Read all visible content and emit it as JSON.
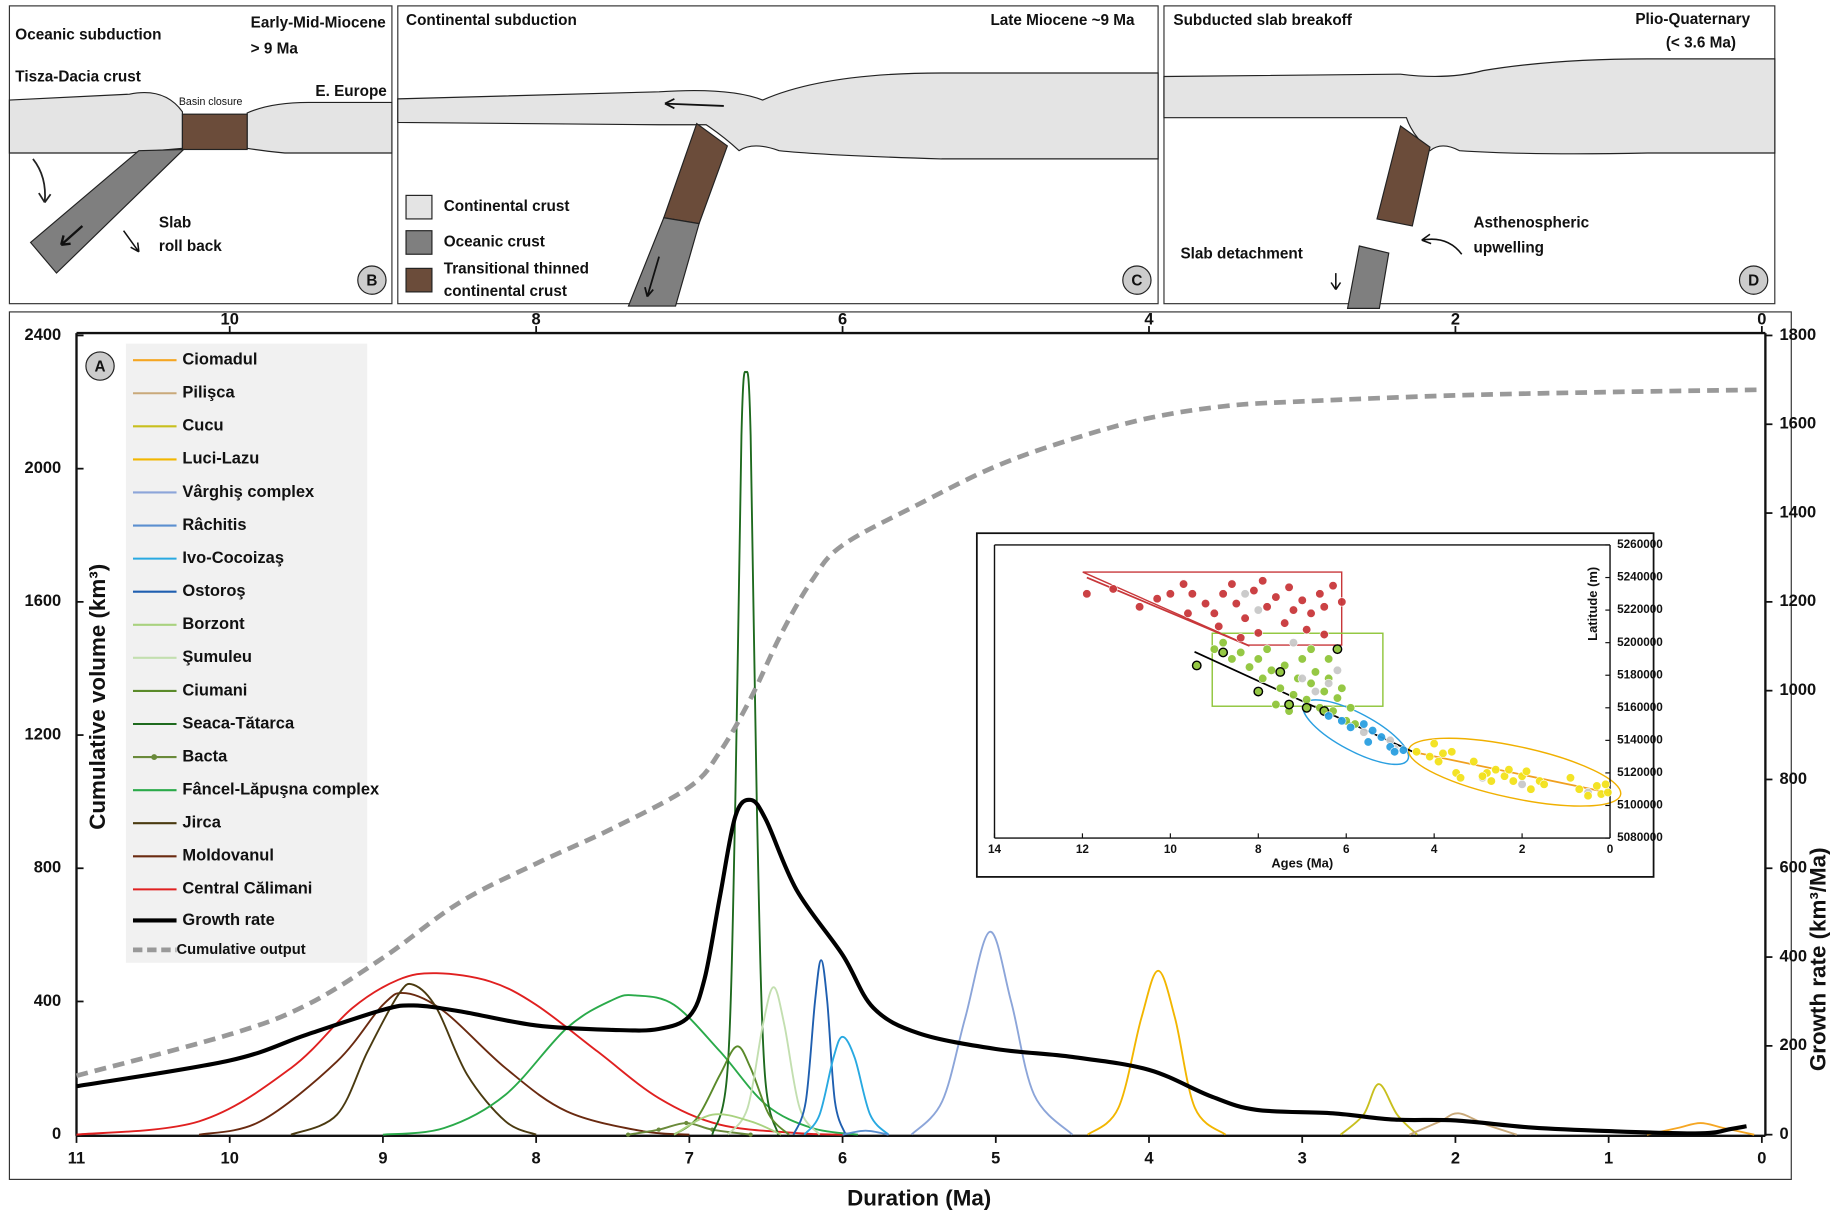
{
  "panels": [
    {
      "title": "Oceanic subduction",
      "period": [
        "Early-Mid-Miocene",
        "> 9 Ma"
      ],
      "labels": [
        "Tisza-Dacia crust",
        "Basin closure",
        "E. Europe",
        "Slab",
        "roll back"
      ],
      "letter": "B"
    },
    {
      "title": "Continental subduction",
      "period": [
        "Late Miocene ~9 Ma"
      ],
      "legend": [
        "Continental crust",
        "Oceanic crust",
        "Transitional thinned",
        "continental crust"
      ],
      "letter": "C"
    },
    {
      "title": "Subducted slab breakoff",
      "period": [
        "Plio-Quaternary",
        "(< 3.6 Ma)"
      ],
      "labels": [
        "Slab detachment",
        "Asthenospheric",
        "upwelling"
      ],
      "letter": "D"
    }
  ],
  "chart_data": [
    {
      "type": "line",
      "panel_label": "A",
      "xlabel": "Duration (Ma)",
      "ylabel": "Cumulative volume (km³)",
      "y2label": "Growth rate (km³/Ma)",
      "xlim": [
        11,
        0
      ],
      "xticks": [
        11,
        10,
        9,
        8,
        7,
        6,
        5,
        4,
        3,
        2,
        1,
        0
      ],
      "x2ticks": [
        10,
        8,
        6,
        4,
        2,
        0
      ],
      "ylim": [
        0,
        2400
      ],
      "yticks": [
        0,
        400,
        800,
        1200,
        1600,
        2000,
        2400
      ],
      "y2lim": [
        0,
        1800
      ],
      "y2ticks": [
        0,
        200,
        400,
        600,
        800,
        1000,
        1200,
        1400,
        1600,
        1800
      ],
      "series": [
        {
          "name": "Ciomadul",
          "color": "#f5a623",
          "x": [
            0.75,
            0.55,
            0.4,
            0.25,
            0.05
          ],
          "values": [
            0,
            20,
            35,
            20,
            0
          ]
        },
        {
          "name": "Pilişca",
          "color": "#c9a97a",
          "x": [
            2.3,
            2.1,
            1.98,
            1.8,
            1.6
          ],
          "values": [
            0,
            40,
            64,
            30,
            0
          ]
        },
        {
          "name": "Cucu",
          "color": "#c8bf1e",
          "x": [
            2.75,
            2.6,
            2.5,
            2.38,
            2.25
          ],
          "values": [
            0,
            60,
            152,
            60,
            0
          ]
        },
        {
          "name": "Luci-Lazu",
          "color": "#f2b600",
          "x": [
            4.4,
            4.2,
            4.05,
            3.94,
            3.83,
            3.7,
            3.5
          ],
          "values": [
            0,
            80,
            350,
            492,
            350,
            80,
            0
          ]
        },
        {
          "name": "Vârghiş complex",
          "color": "#8ca5d9",
          "x": [
            5.55,
            5.35,
            5.2,
            5.04,
            4.9,
            4.75,
            4.5
          ],
          "values": [
            0,
            100,
            350,
            609,
            400,
            120,
            0
          ]
        },
        {
          "name": "Râchitis",
          "color": "#5b8fd0",
          "x": [
            6.0,
            5.85,
            5.7
          ],
          "values": [
            0,
            12,
            0
          ]
        },
        {
          "name": "Ivo-Cocoizaş",
          "color": "#28a9e1",
          "x": [
            6.25,
            6.15,
            6.06,
            6.0,
            5.92,
            5.82,
            5.7
          ],
          "values": [
            0,
            60,
            230,
            294,
            230,
            60,
            0
          ]
        },
        {
          "name": "Ostoroş",
          "color": "#1f5fb0",
          "x": [
            6.32,
            6.24,
            6.18,
            6.14,
            6.1,
            6.05,
            5.98
          ],
          "values": [
            0,
            100,
            400,
            524,
            400,
            100,
            0
          ]
        },
        {
          "name": "Borzont",
          "color": "#a9d27f",
          "x": [
            7.1,
            6.85,
            6.6,
            6.4
          ],
          "values": [
            0,
            60,
            40,
            0
          ]
        },
        {
          "name": "Şumuleu",
          "color": "#c3dfb0",
          "x": [
            6.75,
            6.62,
            6.52,
            6.45,
            6.38,
            6.28,
            6.15
          ],
          "values": [
            0,
            80,
            330,
            443,
            330,
            80,
            0
          ]
        },
        {
          "name": "Ciumani",
          "color": "#5a8a2a",
          "x": [
            7.1,
            6.95,
            6.8,
            6.69,
            6.6,
            6.48,
            6.35
          ],
          "values": [
            0,
            50,
            180,
            265,
            200,
            60,
            0
          ]
        },
        {
          "name": "Seaca-Tătarca",
          "color": "#1e6a1e",
          "x": [
            6.85,
            6.75,
            6.7,
            6.66,
            6.63,
            6.6,
            6.56,
            6.51,
            6.42
          ],
          "values": [
            0,
            200,
            1000,
            2100,
            2290,
            2100,
            1000,
            200,
            0
          ]
        },
        {
          "name": "Bacta",
          "color": "#6a8a3a",
          "marker": "circle",
          "x": [
            7.4,
            7.2,
            7.02,
            6.85,
            6.6
          ],
          "values": [
            0,
            15,
            35,
            15,
            0
          ]
        },
        {
          "name": "Fâncel-Lăpuşna complex",
          "color": "#2aaa4a",
          "x": [
            9.0,
            8.6,
            8.2,
            7.8,
            7.5,
            7.35,
            7.1,
            6.8,
            6.5,
            6.2,
            5.9
          ],
          "values": [
            0,
            20,
            120,
            320,
            405,
            418,
            390,
            250,
            90,
            20,
            0
          ]
        },
        {
          "name": "Jirca",
          "color": "#4a3a10",
          "x": [
            9.6,
            9.3,
            9.1,
            8.9,
            8.8,
            8.65,
            8.45,
            8.2,
            8.0
          ],
          "values": [
            0,
            60,
            250,
            420,
            450,
            380,
            180,
            40,
            0
          ]
        },
        {
          "name": "Moldovanul",
          "color": "#6a2a10",
          "x": [
            10.2,
            9.8,
            9.3,
            9.0,
            8.85,
            8.6,
            8.2,
            7.8,
            7.3,
            7.0
          ],
          "values": [
            0,
            40,
            220,
            390,
            425,
            370,
            200,
            70,
            10,
            0
          ]
        },
        {
          "name": "Central Călimani",
          "color": "#e02020",
          "x": [
            11,
            10.2,
            9.6,
            9.2,
            8.9,
            8.65,
            8.3,
            8.0,
            7.6,
            7.2,
            6.8,
            6.3,
            6.0
          ],
          "values": [
            0,
            40,
            200,
            380,
            465,
            485,
            460,
            390,
            250,
            110,
            30,
            5,
            0
          ]
        },
        {
          "name": "Growth rate",
          "color": "#000000",
          "width": 3.5,
          "axis": "y2",
          "x": [
            11,
            10,
            9.5,
            9,
            8.8,
            8.5,
            8,
            7.5,
            7.2,
            7,
            6.9,
            6.8,
            6.7,
            6.6,
            6.5,
            6.3,
            6,
            5.8,
            5.5,
            5,
            4.5,
            4,
            3.6,
            3.3,
            2.8,
            2.4,
            2,
            1.5,
            1,
            0.4,
            0.2,
            0.1
          ],
          "values": [
            109,
            167,
            225,
            281,
            291,
            278,
            246,
            236,
            238,
            267,
            352,
            537,
            717,
            754,
            709,
            551,
            405,
            286,
            228,
            193,
            175,
            146,
            87,
            56,
            48,
            34,
            32,
            16,
            8,
            3,
            13,
            19
          ]
        },
        {
          "name": "Cumulative output",
          "color": "#999999",
          "width": 4,
          "dashed": true,
          "x": [
            11,
            10,
            9.5,
            9,
            8.5,
            8,
            7.5,
            7,
            6.8,
            6.6,
            6.4,
            6.2,
            6,
            5.5,
            5,
            4.5,
            4,
            3.5,
            3,
            2,
            1,
            0
          ],
          "values": [
            177,
            301,
            389,
            531,
            697,
            814,
            920,
            1044,
            1150,
            1310,
            1504,
            1664,
            1770,
            1894,
            2007,
            2089,
            2152,
            2188,
            2202,
            2220,
            2230,
            2237
          ]
        }
      ]
    },
    {
      "type": "scatter",
      "xlabel": "Ages (Ma)",
      "ylabel": "Latitude (m)",
      "xlim": [
        14,
        0
      ],
      "xticks": [
        14,
        12,
        10,
        8,
        6,
        4,
        2,
        0
      ],
      "ylim": [
        5080000,
        5260000
      ],
      "yticks": [
        5080000,
        5100000,
        5120000,
        5140000,
        5160000,
        5180000,
        5200000,
        5220000,
        5240000,
        5260000
      ],
      "series": [
        {
          "color": "#c8373a",
          "x": [
            11.9,
            11.3,
            10.7,
            10.3,
            10.0,
            9.7,
            9.5,
            9.2,
            9.0,
            8.9,
            8.8,
            8.6,
            8.5,
            8.3,
            8.1,
            8.0,
            7.9,
            7.8,
            7.6,
            7.4,
            7.3,
            7.2,
            7.0,
            6.9,
            6.8,
            6.6,
            6.5,
            6.3,
            6.1,
            6.5,
            9.6,
            8.4
          ],
          "values": [
            5230000,
            5233000,
            5222000,
            5227000,
            5230000,
            5236000,
            5230000,
            5224000,
            5218000,
            5210000,
            5230000,
            5236000,
            5224000,
            5215000,
            5232000,
            5206000,
            5238000,
            5222000,
            5228000,
            5212000,
            5234000,
            5220000,
            5226000,
            5208000,
            5218000,
            5230000,
            5222000,
            5235000,
            5225000,
            5205000,
            5218000,
            5203000
          ]
        },
        {
          "color": "#8fc53a",
          "x": [
            9.0,
            8.8,
            8.6,
            8.4,
            8.2,
            8.0,
            7.9,
            7.7,
            7.5,
            7.4,
            7.2,
            7.1,
            7.0,
            6.9,
            6.8,
            6.7,
            6.6,
            6.5,
            6.4,
            6.3,
            6.2,
            6.1,
            6.0,
            5.9,
            5.8,
            7.6,
            7.3,
            6.8,
            7.8,
            6.4
          ],
          "values": [
            5196000,
            5200000,
            5190000,
            5194000,
            5185000,
            5190000,
            5178000,
            5183000,
            5172000,
            5186000,
            5168000,
            5178000,
            5190000,
            5165000,
            5175000,
            5182000,
            5160000,
            5170000,
            5178000,
            5158000,
            5166000,
            5172000,
            5152000,
            5160000,
            5150000,
            5162000,
            5158000,
            5196000,
            5196000,
            5190000
          ]
        },
        {
          "color": "#8fc53a",
          "edgecolor": "#000000",
          "x": [
            9.4,
            8.8,
            8.0,
            7.5,
            7.3,
            6.9,
            6.5,
            6.2
          ],
          "values": [
            5186000,
            5194000,
            5170000,
            5182000,
            5162000,
            5160000,
            5158000,
            5196000
          ]
        },
        {
          "color": "#c8c8c8",
          "x": [
            8.3,
            8.0,
            7.2,
            7.0,
            6.7,
            6.4,
            6.2,
            5.6,
            5.0,
            4.9,
            2.0,
            2.9,
            0.5
          ],
          "values": [
            5230000,
            5220000,
            5200000,
            5178000,
            5170000,
            5175000,
            5183000,
            5145000,
            5140000,
            5135000,
            5113000,
            5117000,
            5108000
          ]
        },
        {
          "color": "#2a9fe0",
          "x": [
            6.4,
            6.1,
            5.9,
            5.6,
            5.4,
            5.2,
            5.0,
            4.9,
            4.7,
            5.5
          ],
          "values": [
            5155000,
            5152000,
            5148000,
            5150000,
            5146000,
            5142000,
            5136000,
            5133000,
            5134000,
            5139000
          ]
        },
        {
          "color": "#f2e21a",
          "x": [
            4.4,
            4.1,
            3.9,
            3.8,
            3.5,
            3.4,
            3.1,
            2.8,
            2.7,
            2.6,
            2.4,
            2.3,
            2.2,
            2.0,
            1.9,
            1.8,
            1.6,
            1.5,
            0.9,
            0.7,
            0.5,
            0.3,
            0.2,
            0.1,
            0.05,
            4.0,
            3.6,
            2.9
          ],
          "values": [
            5133000,
            5130000,
            5127000,
            5132000,
            5120000,
            5117000,
            5127000,
            5120000,
            5115000,
            5122000,
            5118000,
            5122000,
            5115000,
            5118000,
            5121000,
            5110000,
            5115000,
            5113000,
            5117000,
            5110000,
            5106000,
            5112000,
            5107000,
            5113000,
            5108000,
            5138000,
            5133000,
            5118000
          ]
        }
      ],
      "trend_lines": [
        {
          "color": "#c8373a",
          "x": [
            11.9,
            8.2
          ],
          "values": [
            5240000,
            5198000
          ]
        },
        {
          "color": "#000000",
          "x": [
            9.45,
            4.5
          ],
          "values": [
            5194400,
            5133200
          ]
        },
        {
          "color": "#f0a020",
          "x": [
            4.5,
            0
          ],
          "values": [
            5133000,
            5107700
          ]
        }
      ]
    }
  ]
}
